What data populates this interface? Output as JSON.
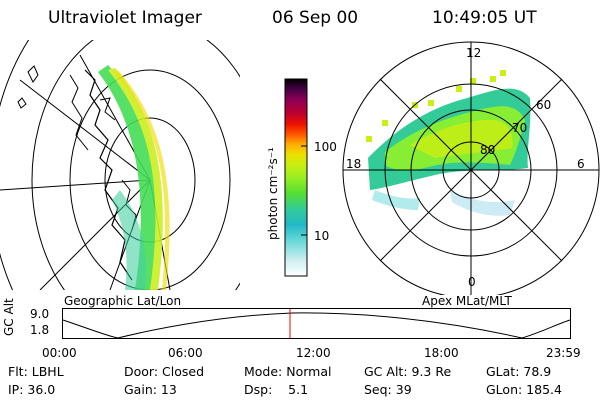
{
  "header": {
    "instrument": "Ultraviolet Imager",
    "date": "06 Sep 00",
    "time": "10:49:05 UT"
  },
  "colorbar": {
    "unit_label": "photon cm⁻²s⁻¹",
    "ticks": [
      "100",
      "10"
    ],
    "colors": [
      "#ffffff",
      "#cfeef0",
      "#66d8d8",
      "#22b8c8",
      "#33cc99",
      "#55dd33",
      "#99ee22",
      "#ccee11",
      "#eedd00",
      "#ffaa00",
      "#ff5500",
      "#ee1100",
      "#bb0033",
      "#880055",
      "#440044",
      "#000000"
    ]
  },
  "left_panel": {
    "label": "Geographic Lat/Lon"
  },
  "right_panel": {
    "label": "Apex MLat/MLT",
    "mlt_labels": {
      "top": "12",
      "left": "18",
      "right": "6",
      "bottom": "0"
    },
    "mlat_labels": [
      "60",
      "70",
      "80"
    ]
  },
  "altitude_plot": {
    "ylabel": "GC Alt",
    "yticks": [
      "9.0",
      "1.8"
    ],
    "xticks": [
      "00:00",
      "06:00",
      "12:00",
      "18:00",
      "23:59"
    ]
  },
  "status": {
    "filter": "Flt: LBHL",
    "door": "Door: Closed",
    "mode": "Mode: Normal",
    "gc_alt": "GC Alt: 9.3 Re",
    "glat": "GLat:  78.9",
    "ip": "IP: 36.0",
    "gain": "Gain: 13",
    "dsp": "Dsp:    5.1",
    "seq": "Seq: 39",
    "glon": "GLon: 185.4"
  }
}
